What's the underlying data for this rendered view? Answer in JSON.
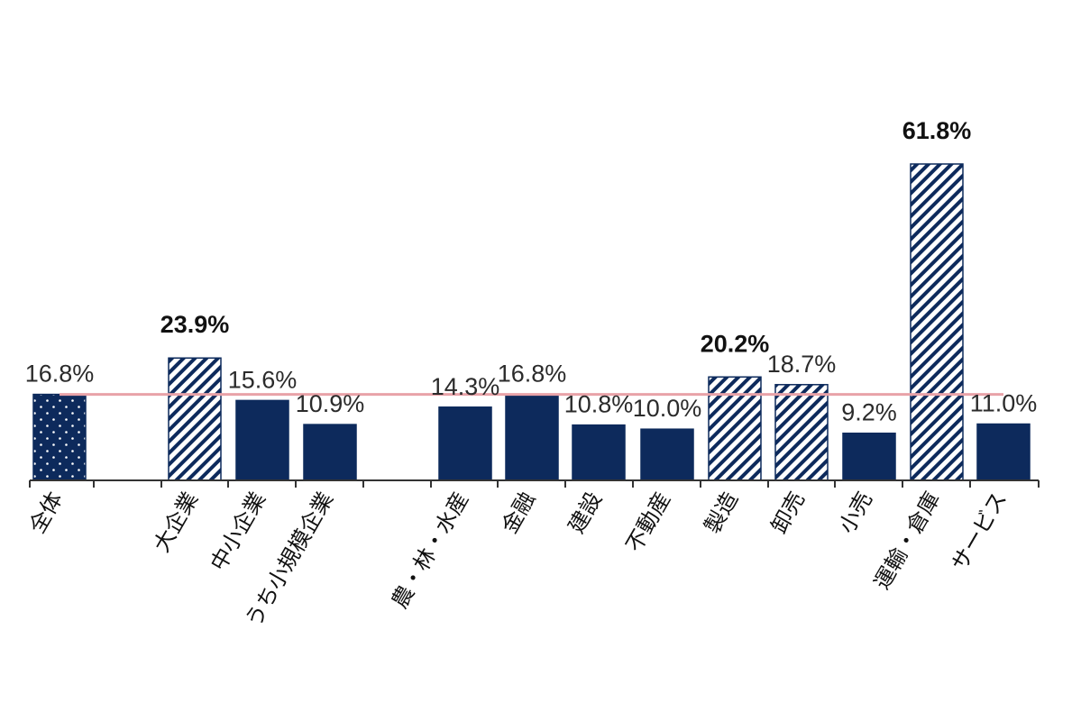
{
  "chart_data": {
    "type": "bar",
    "categories": [
      "全体",
      "大企業",
      "中小企業",
      "うち小規模企業",
      "農・林・水産",
      "金融",
      "建設",
      "不動産",
      "製造",
      "卸売",
      "小売",
      "運輸・倉庫",
      "サービス"
    ],
    "values": [
      16.8,
      23.9,
      15.6,
      10.9,
      14.3,
      16.8,
      10.8,
      10.0,
      20.2,
      18.7,
      9.2,
      61.8,
      11.0
    ],
    "value_labels": [
      "16.8%",
      "23.9%",
      "15.6%",
      "10.9%",
      "14.3%",
      "16.8%",
      "10.8%",
      "10.0%",
      "20.2%",
      "18.7%",
      "9.2%",
      "61.8%",
      "11.0%"
    ],
    "patterns": [
      "dots",
      "hatch",
      "solid",
      "solid",
      "solid",
      "solid",
      "solid",
      "solid",
      "hatch",
      "hatch",
      "solid",
      "hatch",
      "solid"
    ],
    "bold_labels": [
      false,
      true,
      false,
      false,
      false,
      false,
      false,
      false,
      true,
      false,
      false,
      true,
      false
    ],
    "reference_line": 16.8,
    "ylim": [
      0,
      65
    ],
    "grid": false,
    "legend": "none",
    "colors": {
      "bar": "#0d2a5c",
      "reference_line": "#e8a2a8",
      "axis": "#333333"
    }
  }
}
